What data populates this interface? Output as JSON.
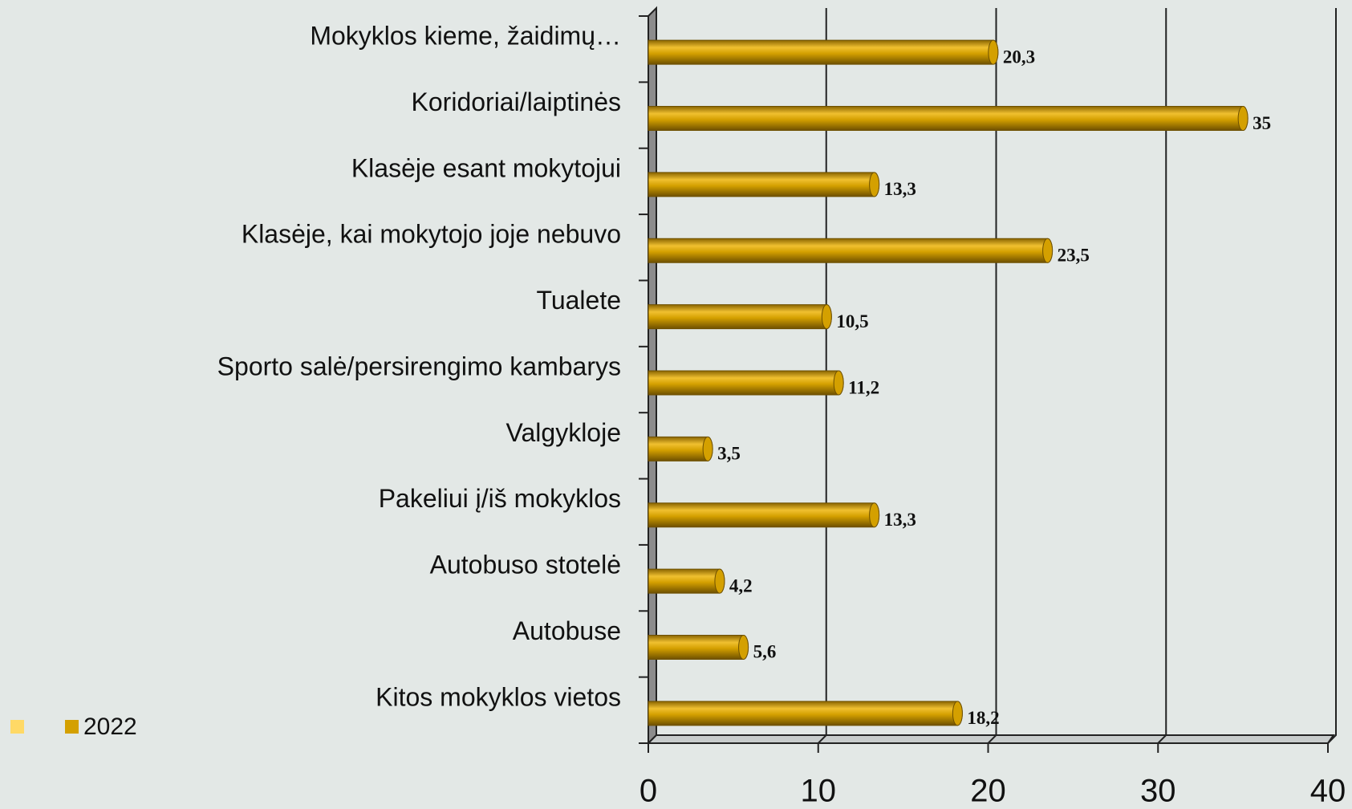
{
  "chart_data": {
    "type": "bar",
    "orientation": "horizontal",
    "categories": [
      "Mokyklos kieme, žaidimų…",
      "Koridoriai/laiptinės",
      "Klasėje esant mokytojui",
      "Klasėje, kai mokytojo joje nebuvo",
      "Tualete",
      "Sporto salė/persirengimo kambarys",
      "Valgykloje",
      "Pakeliui į/iš mokyklos",
      "Autobuso stotelė",
      "Autobuse",
      "Kitos mokyklos vietos"
    ],
    "series": [
      {
        "name": "2022",
        "color": "#d4a000",
        "values": [
          20.3,
          35,
          13.3,
          23.5,
          10.5,
          11.2,
          3.5,
          13.3,
          4.2,
          5.6,
          18.2
        ],
        "value_labels": [
          "20,3",
          "35",
          "13,3",
          "23,5",
          "10,5",
          "11,2",
          "3,5",
          "13,3",
          "4,2",
          "5,6",
          "18,2"
        ]
      }
    ],
    "xlim": [
      0,
      40
    ],
    "xticks": [
      0,
      10,
      20,
      30,
      40
    ],
    "grid": true,
    "legend": "bottom-left"
  }
}
